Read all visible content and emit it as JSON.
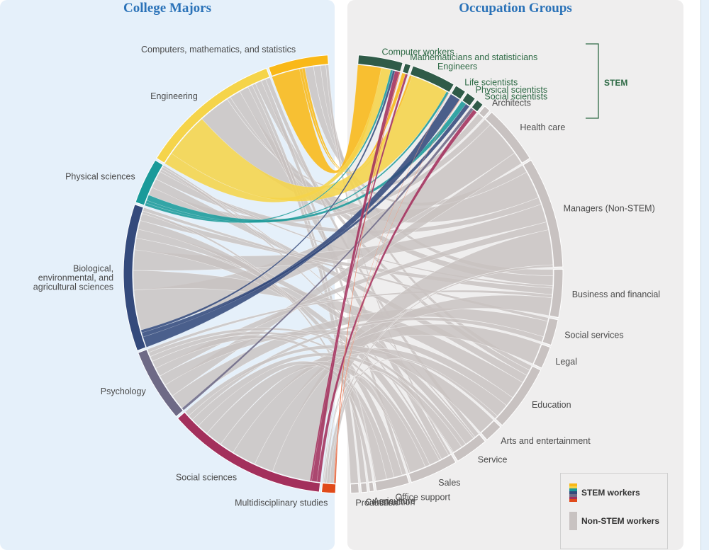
{
  "titles": {
    "majors": "College Majors",
    "occupations": "Occupation Groups"
  },
  "stem_bracket_label": "STEM",
  "legend": {
    "stem_label": "STEM workers",
    "non_stem_label": "Non-STEM workers"
  },
  "colors": {
    "computers": "#f9b817",
    "engineering": "#f5d44a",
    "physical": "#1a9a9a",
    "biological": "#344a7c",
    "psychology": "#6e6a86",
    "social_sciences": "#a3305c",
    "multidisciplinary": "#e04a1a",
    "stem_occupation": "#2f5b48",
    "non_stem": "#c8c2c1",
    "ring_gap": "#ffffff"
  },
  "chart_data": {
    "type": "chord",
    "majors": [
      {
        "key": "computers",
        "label": "Computers, mathematics, and statistics",
        "share": 6.5
      },
      {
        "key": "engineering",
        "label": "Engineering",
        "share": 15.5
      },
      {
        "key": "physical",
        "label": "Physical sciences",
        "share": 5.0
      },
      {
        "key": "biological",
        "label": "Biological, environmental, and agricultural sciences",
        "share": 16.0
      },
      {
        "key": "psychology",
        "label": "Psychology",
        "share": 8.0
      },
      {
        "key": "social_sciences",
        "label": "Social sciences",
        "share": 17.5
      },
      {
        "key": "multidisciplinary",
        "label": "Multidisciplinary studies",
        "share": 1.5
      }
    ],
    "occupations": [
      {
        "key": "computer_workers",
        "label": "Computer workers",
        "stem": true,
        "share": 6.0
      },
      {
        "key": "math_stat",
        "label": "Mathematicians and statisticians",
        "stem": true,
        "share": 0.8
      },
      {
        "key": "engineers",
        "label": "Engineers",
        "stem": true,
        "share": 6.0
      },
      {
        "key": "life_sci",
        "label": "Life scientists",
        "stem": true,
        "share": 1.5
      },
      {
        "key": "phys_sci",
        "label": "Physical scientists",
        "stem": true,
        "share": 1.3
      },
      {
        "key": "soc_sci",
        "label": "Social scientists",
        "stem": true,
        "share": 1.0
      },
      {
        "key": "architects",
        "label": "Architects",
        "stem": false,
        "share": 0.9
      },
      {
        "key": "health",
        "label": "Health care",
        "stem": false,
        "share": 8.0
      },
      {
        "key": "managers",
        "label": "Managers (Non-STEM)",
        "stem": false,
        "share": 15.0
      },
      {
        "key": "business",
        "label": "Business and financial",
        "stem": false,
        "share": 6.5
      },
      {
        "key": "social_services",
        "label": "Social services",
        "stem": false,
        "share": 3.5
      },
      {
        "key": "legal",
        "label": "Legal",
        "stem": false,
        "share": 3.0
      },
      {
        "key": "education",
        "label": "Education",
        "stem": false,
        "share": 9.0
      },
      {
        "key": "arts",
        "label": "Arts and entertainment",
        "stem": false,
        "share": 2.5
      },
      {
        "key": "service",
        "label": "Service",
        "stem": false,
        "share": 4.5
      },
      {
        "key": "sales",
        "label": "Sales",
        "stem": false,
        "share": 6.5
      },
      {
        "key": "office",
        "label": "Office support",
        "stem": false,
        "share": 4.5
      },
      {
        "key": "agriculture",
        "label": "Agriculture",
        "stem": false,
        "share": 0.6
      },
      {
        "key": "construction",
        "label": "Construction",
        "stem": false,
        "share": 0.8
      },
      {
        "key": "production",
        "label": "Production",
        "stem": false,
        "share": 1.1
      }
    ],
    "flows": [
      [
        "computers",
        "computer_workers",
        3.2
      ],
      [
        "computers",
        "math_stat",
        0.3
      ],
      [
        "computers",
        "engineers",
        0.3
      ],
      [
        "computers",
        "managers",
        1.0
      ],
      [
        "computers",
        "business",
        0.8
      ],
      [
        "computers",
        "education",
        0.6
      ],
      [
        "computers",
        "sales",
        0.3
      ],
      [
        "engineering",
        "computer_workers",
        1.3
      ],
      [
        "engineering",
        "engineers",
        5.0
      ],
      [
        "engineering",
        "managers",
        3.5
      ],
      [
        "engineering",
        "architects",
        0.4
      ],
      [
        "engineering",
        "business",
        1.2
      ],
      [
        "engineering",
        "sales",
        1.0
      ],
      [
        "engineering",
        "production",
        0.5
      ],
      [
        "engineering",
        "construction",
        0.4
      ],
      [
        "engineering",
        "education",
        0.7
      ],
      [
        "engineering",
        "office",
        0.5
      ],
      [
        "engineering",
        "service",
        0.5
      ],
      [
        "physical",
        "computer_workers",
        0.3
      ],
      [
        "physical",
        "engineers",
        0.3
      ],
      [
        "physical",
        "phys_sci",
        0.6
      ],
      [
        "physical",
        "health",
        0.9
      ],
      [
        "physical",
        "education",
        1.0
      ],
      [
        "physical",
        "managers",
        0.9
      ],
      [
        "physical",
        "business",
        0.3
      ],
      [
        "physical",
        "sales",
        0.3
      ],
      [
        "physical",
        "service",
        0.2
      ],
      [
        "biological",
        "life_sci",
        1.2
      ],
      [
        "biological",
        "phys_sci",
        0.5
      ],
      [
        "biological",
        "computer_workers",
        0.3
      ],
      [
        "biological",
        "health",
        4.5
      ],
      [
        "biological",
        "education",
        2.2
      ],
      [
        "biological",
        "managers",
        2.3
      ],
      [
        "biological",
        "sales",
        1.3
      ],
      [
        "biological",
        "service",
        1.0
      ],
      [
        "biological",
        "office",
        1.0
      ],
      [
        "biological",
        "business",
        0.8
      ],
      [
        "biological",
        "agriculture",
        0.3
      ],
      [
        "biological",
        "social_services",
        0.4
      ],
      [
        "psychology",
        "soc_sci",
        0.3
      ],
      [
        "psychology",
        "social_services",
        1.8
      ],
      [
        "psychology",
        "health",
        1.5
      ],
      [
        "psychology",
        "education",
        1.2
      ],
      [
        "psychology",
        "managers",
        1.0
      ],
      [
        "psychology",
        "office",
        0.9
      ],
      [
        "psychology",
        "sales",
        0.6
      ],
      [
        "psychology",
        "service",
        0.5
      ],
      [
        "psychology",
        "business",
        0.4
      ],
      [
        "social_sciences",
        "soc_sci",
        0.4
      ],
      [
        "social_sciences",
        "computer_workers",
        0.6
      ],
      [
        "social_sciences",
        "math_stat",
        0.2
      ],
      [
        "social_sciences",
        "managers",
        4.4
      ],
      [
        "social_sciences",
        "business",
        2.2
      ],
      [
        "social_sciences",
        "legal",
        2.8
      ],
      [
        "social_sciences",
        "education",
        1.7
      ],
      [
        "social_sciences",
        "sales",
        2.0
      ],
      [
        "social_sciences",
        "office",
        1.3
      ],
      [
        "social_sciences",
        "service",
        1.0
      ],
      [
        "social_sciences",
        "social_services",
        0.6
      ],
      [
        "social_sciences",
        "arts",
        0.6
      ],
      [
        "multidisciplinary",
        "computer_workers",
        0.1
      ],
      [
        "multidisciplinary",
        "engineers",
        0.05
      ],
      [
        "multidisciplinary",
        "life_sci",
        0.05
      ],
      [
        "multidisciplinary",
        "education",
        0.4
      ],
      [
        "multidisciplinary",
        "managers",
        0.3
      ],
      [
        "multidisciplinary",
        "sales",
        0.2
      ],
      [
        "multidisciplinary",
        "service",
        0.1
      ],
      [
        "multidisciplinary",
        "office",
        0.1
      ]
    ]
  }
}
